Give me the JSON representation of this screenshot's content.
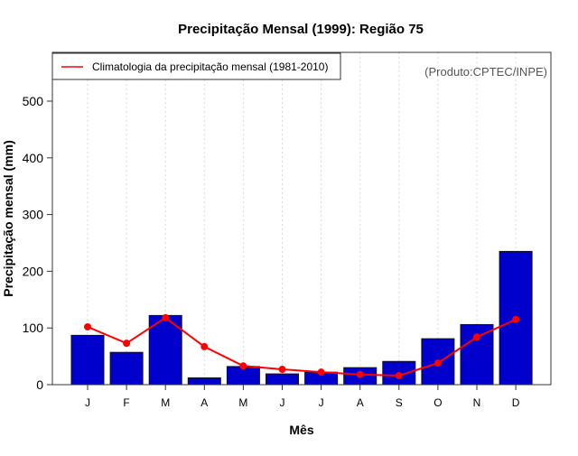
{
  "chart_data": {
    "type": "bar",
    "title": "Precipitação Mensal (1999): Região 75",
    "xlabel": "Mês",
    "ylabel": "Precipitação mensal (mm)",
    "categories": [
      "J",
      "F",
      "M",
      "A",
      "M",
      "J",
      "J",
      "A",
      "S",
      "O",
      "N",
      "D"
    ],
    "ylim": [
      0,
      585
    ],
    "yticks": [
      0,
      100,
      200,
      300,
      400,
      500
    ],
    "grid": "vertical dotted",
    "series": [
      {
        "name": "Precipitação mensal (1999)",
        "type": "bar",
        "color": "#0000CC",
        "values": [
          87,
          57,
          122,
          12,
          32,
          19,
          22,
          30,
          41,
          81,
          106,
          235
        ]
      },
      {
        "name": "Climatologia da precipitação mensal (1981-2010)",
        "type": "line",
        "color": "#FF0000",
        "values": [
          102,
          73,
          118,
          67,
          33,
          27,
          22,
          18,
          16,
          38,
          84,
          115
        ]
      }
    ],
    "legend": {
      "position": "top-left",
      "entries": [
        "Climatologia da precipitação mensal (1981-2010)"
      ]
    },
    "annotation": "(Produto:CPTEC/INPE)"
  }
}
